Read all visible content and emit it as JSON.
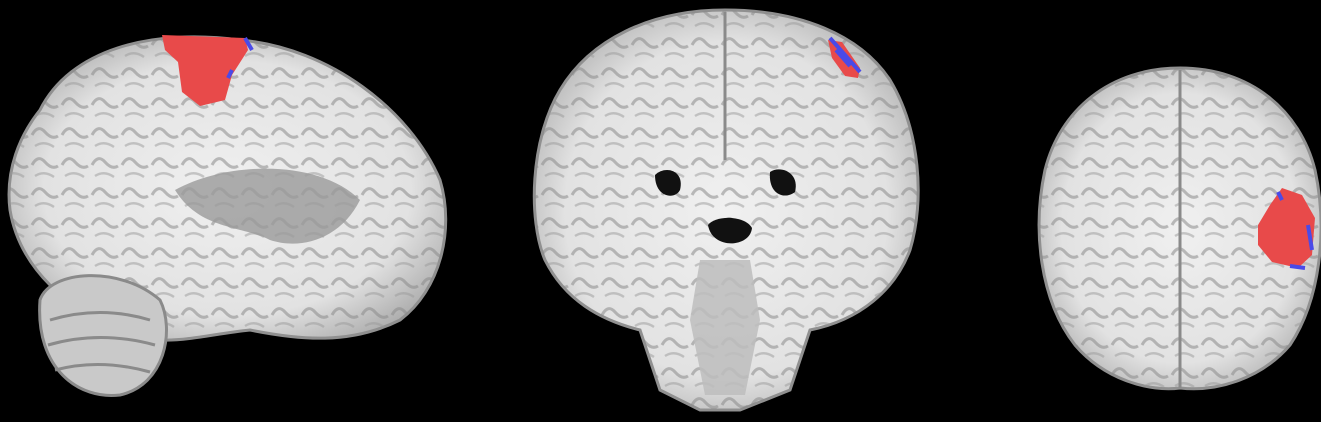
{
  "figure": {
    "background": "#000000",
    "views": [
      {
        "kind": "sagittal",
        "overlay": "#e84a4a",
        "edge": "#4a4ae8"
      },
      {
        "kind": "coronal",
        "overlay": "#e84a4a",
        "edge": "#4a4ae8"
      },
      {
        "kind": "axial",
        "overlay": "#e84a4a",
        "edge": "#4a4ae8"
      }
    ],
    "colors": {
      "brain_gray": "#b9b9b9",
      "white_matter": "#ebebeb",
      "sulci_dark": "#7e7e7e",
      "overlay_red": "#e84a4a",
      "overlay_blue_edge": "#4a4ae8"
    }
  }
}
